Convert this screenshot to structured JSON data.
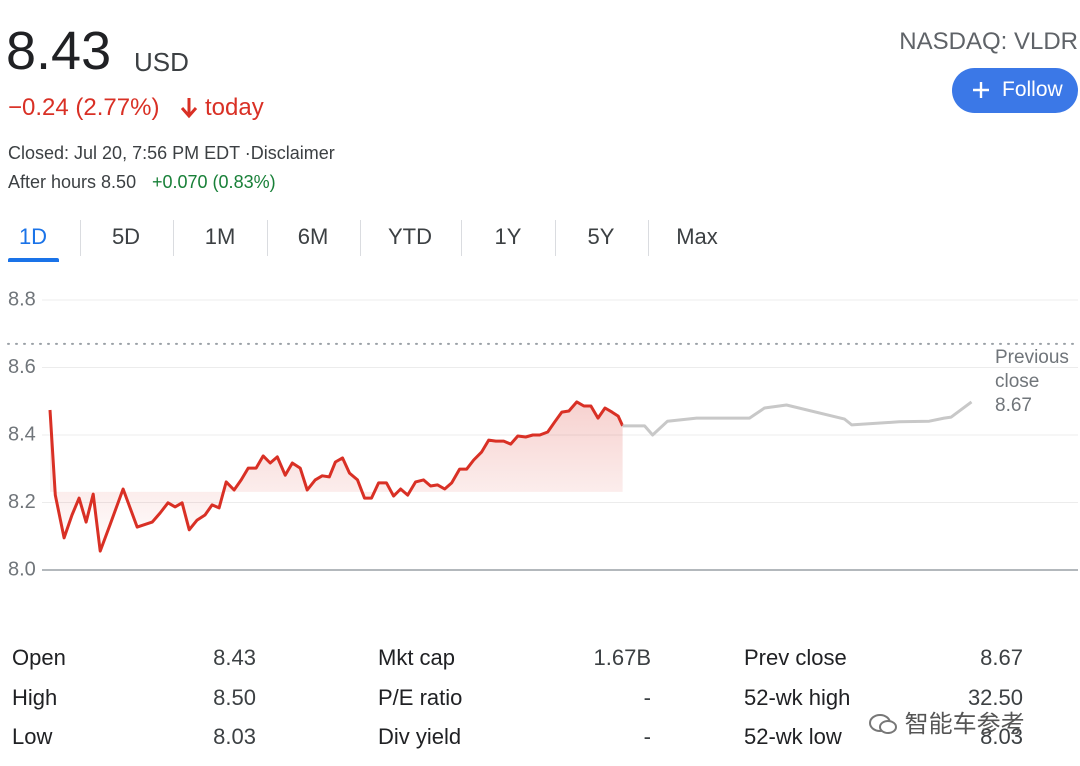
{
  "header": {
    "price": "8.43",
    "currency": "USD",
    "change": "−0.24 (2.77%)",
    "change_period": "today",
    "closed": "Closed: Jul 20, 7:56 PM EDT ·Disclaimer",
    "after_hours": "After hours 8.50",
    "after_hours_change": "+0.070 (0.83%)",
    "exchange": "NASDAQ: VLDR",
    "follow": "Follow"
  },
  "tabs": [
    "1D",
    "5D",
    "1M",
    "6M",
    "YTD",
    "1Y",
    "5Y",
    "Max"
  ],
  "chart_data": {
    "type": "line",
    "xlim": [
      9.5,
      20
    ],
    "ylim": [
      8.0,
      8.8
    ],
    "yticks": [
      {
        "value": 8.0,
        "label": "8.0"
      },
      8.2,
      8.4,
      8.6,
      {
        "value": 8.8,
        "label": "8.8"
      }
    ],
    "grid": true,
    "previous_close": {
      "label": "Previous close",
      "value": 8.67
    },
    "series": [
      {
        "color": "#d93025",
        "fill_gradient": true,
        "x": [
          9.5,
          9.56,
          9.66,
          9.75,
          9.83,
          9.91,
          9.99,
          10.07,
          10.18,
          10.33,
          10.49,
          10.66,
          10.75,
          10.84,
          10.92,
          11.0,
          11.08,
          11.17,
          11.26,
          11.34,
          11.42,
          11.5,
          11.59,
          11.67,
          11.75,
          11.84,
          11.92,
          12.0,
          12.08,
          12.17,
          12.25,
          12.34,
          12.42,
          12.51,
          12.59,
          12.67,
          12.74,
          12.82,
          12.9,
          12.99,
          13.07,
          13.15,
          13.23,
          13.32,
          13.4,
          13.48,
          13.56,
          13.65,
          13.74,
          13.82,
          13.9,
          13.98,
          14.06,
          14.15,
          14.23,
          14.31,
          14.4,
          14.48,
          14.56,
          14.65,
          14.73,
          14.81,
          14.9,
          14.98,
          15.06,
          15.15,
          15.23,
          15.31,
          15.39,
          15.48,
          15.56,
          15.64,
          15.72,
          15.8,
          15.88,
          15.95,
          16.0
        ],
        "values": [
          8.474,
          8.222,
          8.095,
          8.163,
          8.213,
          8.142,
          8.225,
          8.056,
          8.133,
          8.24,
          8.127,
          8.142,
          8.169,
          8.199,
          8.187,
          8.199,
          8.119,
          8.148,
          8.163,
          8.193,
          8.184,
          8.261,
          8.237,
          8.267,
          8.302,
          8.302,
          8.338,
          8.317,
          8.335,
          8.281,
          8.317,
          8.302,
          8.237,
          8.267,
          8.279,
          8.276,
          8.32,
          8.332,
          8.287,
          8.267,
          8.213,
          8.213,
          8.258,
          8.258,
          8.219,
          8.24,
          8.222,
          8.261,
          8.267,
          8.249,
          8.252,
          8.24,
          8.258,
          8.299,
          8.299,
          8.326,
          8.35,
          8.385,
          8.382,
          8.382,
          8.373,
          8.397,
          8.394,
          8.4,
          8.4,
          8.409,
          8.439,
          8.468,
          8.471,
          8.498,
          8.486,
          8.486,
          8.45,
          8.48,
          8.468,
          8.456,
          8.427
        ]
      },
      {
        "color": "#c8c8c8",
        "x": [
          16.0,
          16.25,
          16.34,
          16.51,
          16.84,
          17.44,
          17.61,
          17.86,
          18.52,
          18.6,
          19.14,
          19.48,
          19.65,
          19.73,
          19.96
        ],
        "values": [
          8.427,
          8.427,
          8.4,
          8.441,
          8.45,
          8.45,
          8.48,
          8.489,
          8.447,
          8.43,
          8.439,
          8.441,
          8.45,
          8.453,
          8.498
        ]
      }
    ]
  },
  "stats": [
    [
      [
        "Open",
        "8.43"
      ],
      [
        "Mkt cap",
        "1.67B"
      ],
      [
        "Prev close",
        "8.67"
      ]
    ],
    [
      [
        "High",
        "8.50"
      ],
      [
        "P/E ratio",
        "-"
      ],
      [
        "52-wk high",
        "32.50"
      ]
    ],
    [
      [
        "Low",
        "8.03"
      ],
      [
        "Div yield",
        "-"
      ],
      [
        "52-wk low",
        "8.03"
      ]
    ]
  ],
  "watermark": "智能车参考"
}
